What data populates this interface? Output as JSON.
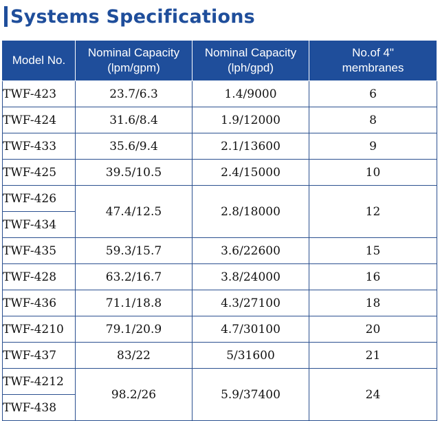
{
  "title": "Systems Specifications",
  "colors": {
    "accent": "#1f4e9b",
    "border": "#2a4f8f"
  },
  "header": {
    "model": "Model No.",
    "cap1_line1": "Nominal Capacity",
    "cap1_line2": "(lpm/gpm)",
    "cap2_line1": "Nominal Capacity",
    "cap2_line2": "(lph/gpd)",
    "mem_line1": "No.of 4\"",
    "mem_line2": "membranes"
  },
  "rows": [
    {
      "models": [
        "TWF-423"
      ],
      "lpm": "23.7/6.3",
      "lph": "1.4/9000",
      "membranes": "6"
    },
    {
      "models": [
        "TWF-424"
      ],
      "lpm": "31.6/8.4",
      "lph": "1.9/12000",
      "membranes": "8"
    },
    {
      "models": [
        "TWF-433"
      ],
      "lpm": "35.6/9.4",
      "lph": "2.1/13600",
      "membranes": "9"
    },
    {
      "models": [
        "TWF-425"
      ],
      "lpm": "39.5/10.5",
      "lph": "2.4/15000",
      "membranes": "10"
    },
    {
      "models": [
        "TWF-426",
        "TWF-434"
      ],
      "lpm": "47.4/12.5",
      "lph": "2.8/18000",
      "membranes": "12"
    },
    {
      "models": [
        "TWF-435"
      ],
      "lpm": "59.3/15.7",
      "lph": "3.6/22600",
      "membranes": "15"
    },
    {
      "models": [
        "TWF-428"
      ],
      "lpm": "63.2/16.7",
      "lph": "3.8/24000",
      "membranes": "16"
    },
    {
      "models": [
        "TWF-436"
      ],
      "lpm": "71.1/18.8",
      "lph": "4.3/27100",
      "membranes": "18"
    },
    {
      "models": [
        "TWF-4210"
      ],
      "lpm": "79.1/20.9",
      "lph": "4.7/30100",
      "membranes": "20"
    },
    {
      "models": [
        "TWF-437"
      ],
      "lpm": "83/22",
      "lph": "5/31600",
      "membranes": "21"
    },
    {
      "models": [
        "TWF-4212",
        "TWF-438"
      ],
      "lpm": "98.2/26",
      "lph": "5.9/37400",
      "membranes": "24"
    }
  ]
}
